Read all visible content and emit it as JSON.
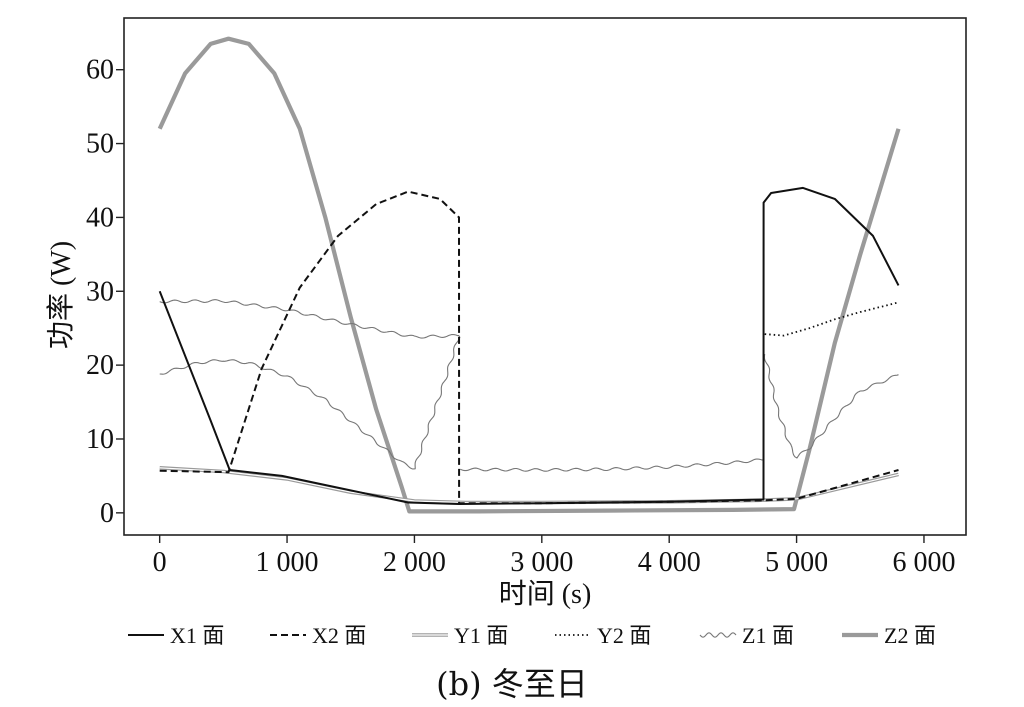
{
  "chart_data": {
    "type": "line",
    "title": "",
    "caption": "(b) 冬至日",
    "xlabel": "时间 (s)",
    "ylabel": "功率 (W)",
    "xlim": [
      -280,
      6330
    ],
    "ylim": [
      -3,
      67
    ],
    "xticks": [
      0,
      1000,
      2000,
      3000,
      4000,
      5000,
      6000
    ],
    "xtick_labels": [
      "0",
      "1 000",
      "2 000",
      "3 000",
      "4 000",
      "5 000",
      "6 000"
    ],
    "yticks": [
      0,
      10,
      20,
      30,
      40,
      50,
      60
    ],
    "ytick_labels": [
      "0",
      "10",
      "20",
      "30",
      "40",
      "50",
      "60"
    ],
    "grid": false,
    "legend_position": "bottom",
    "series": [
      {
        "name": "X1 面",
        "style": "solid",
        "color": "#111111",
        "x": [
          0,
          400,
          550,
          960,
          1950,
          2350,
          3000,
          4000,
          4740,
          4741,
          4800,
          5050,
          5300,
          5600,
          5800
        ],
        "y": [
          30,
          12.5,
          5.8,
          5.0,
          1.4,
          1.2,
          1.3,
          1.5,
          1.8,
          42.0,
          43.3,
          44.0,
          42.5,
          37.5,
          30.8
        ]
      },
      {
        "name": "X2 面",
        "style": "dashed",
        "color": "#111111",
        "x": [
          0,
          540,
          800,
          1100,
          1400,
          1700,
          1950,
          2200,
          2350,
          2351,
          3000,
          4000,
          4740,
          5000,
          5800
        ],
        "y": [
          5.7,
          5.5,
          19.5,
          30.5,
          37.5,
          41.8,
          43.5,
          42.5,
          40.0,
          1.3,
          1.3,
          1.5,
          1.7,
          1.9,
          5.8
        ]
      },
      {
        "name": "Y1 面",
        "style": "double",
        "color": "#9a9a9a",
        "x": [
          0,
          500,
          1000,
          1500,
          2000,
          2400,
          3000,
          4000,
          4700,
          5000,
          5800
        ],
        "y": [
          6.1,
          5.6,
          4.6,
          2.8,
          1.6,
          1.4,
          1.4,
          1.5,
          1.7,
          1.9,
          5.2
        ]
      },
      {
        "name": "Y2 面",
        "style": "dotted",
        "color": "#111111",
        "x": [
          4750,
          4900,
          5100,
          5300,
          5500,
          5800
        ],
        "y": [
          24.2,
          24.0,
          25.0,
          26.2,
          27.2,
          28.5
        ]
      },
      {
        "name": "Z1 面",
        "style": "wavy",
        "color": "#777777",
        "segments": [
          {
            "x": [
              0,
              300,
              500,
              700,
              1000,
              1300,
              1600,
              1900,
              2000,
              2100,
              2240,
              2350
            ],
            "y": [
              18.8,
              20.3,
              20.7,
              20.3,
              18.5,
              15.3,
              11.0,
              6.8,
              6.0,
              11.0,
              18.0,
              24.0
            ]
          },
          {
            "x": [
              2360,
              3000,
              3500,
              4000,
              4500,
              4740
            ],
            "y": [
              5.9,
              5.8,
              5.9,
              6.2,
              6.8,
              7.2
            ]
          },
          {
            "x": [
              4750,
              4850,
              4950,
              5000,
              5100,
              5300,
              5500,
              5800
            ],
            "y": [
              21.5,
              14.0,
              9.0,
              7.5,
              8.8,
              12.8,
              16.5,
              18.7
            ]
          },
          {
            "x": [
              0,
              500,
              1000,
              1500,
              2000,
              2350
            ],
            "y": [
              28.6,
              28.7,
              27.5,
              25.5,
              23.8,
              24.0
            ]
          }
        ]
      },
      {
        "name": "Z2 面",
        "style": "thick",
        "color": "#9a9a9a",
        "x": [
          0,
          200,
          400,
          540,
          700,
          900,
          1100,
          1300,
          1500,
          1700,
          1900,
          1960,
          2500,
          3500,
          4500,
          4980,
          5100,
          5300,
          5500,
          5800
        ],
        "y": [
          52.0,
          59.5,
          63.5,
          64.2,
          63.5,
          59.5,
          52.0,
          40.0,
          26.5,
          14.0,
          3.5,
          0.2,
          0.2,
          0.3,
          0.4,
          0.5,
          8.5,
          23.0,
          35.0,
          52.0
        ]
      }
    ]
  }
}
